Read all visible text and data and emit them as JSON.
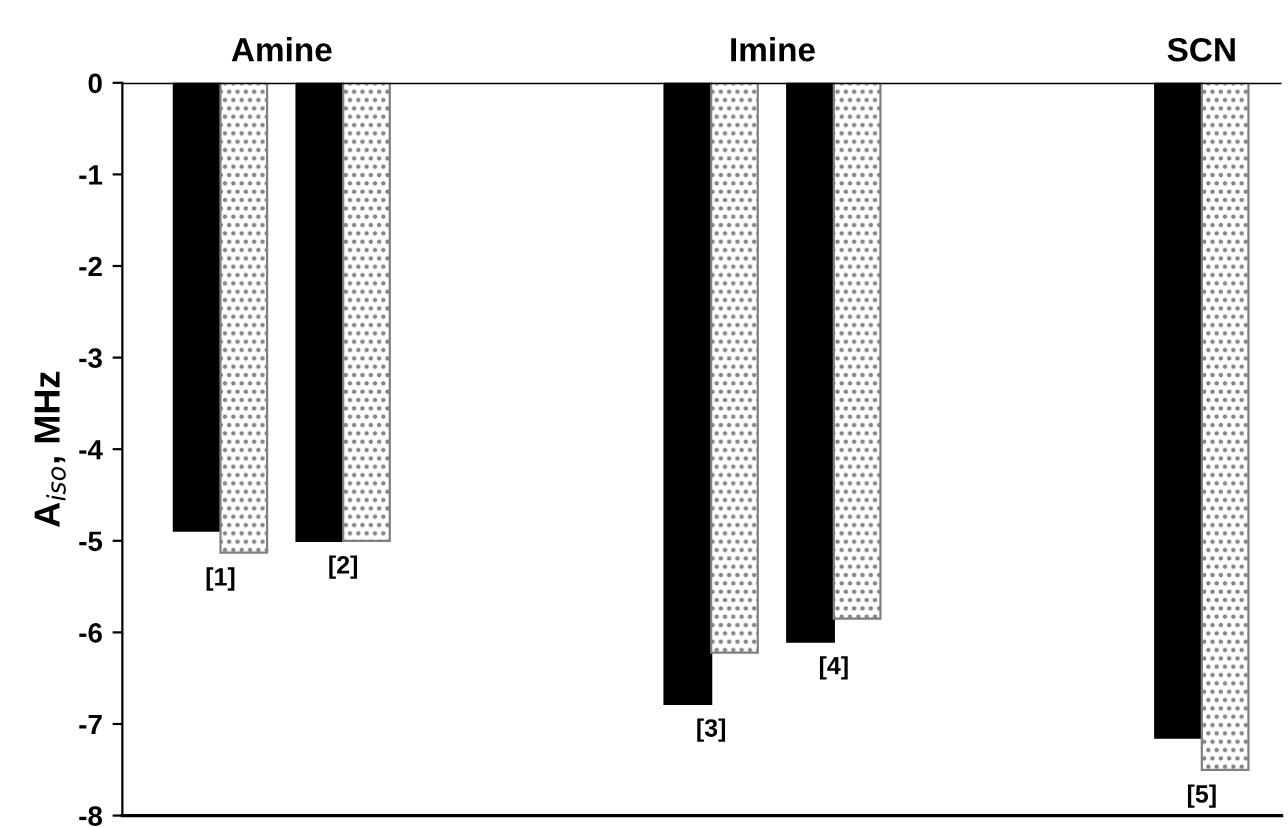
{
  "chart_data": {
    "type": "bar",
    "ylabel": "A$_{iso}$, MHz",
    "categories": [
      "[1]",
      "[2]",
      null,
      null,
      "[3]",
      "[4]",
      null,
      null,
      "[5]"
    ],
    "series": [
      {
        "color": "#000000",
        "values": [
          -4.89,
          -5.0,
          null,
          null,
          -6.78,
          -6.1,
          null,
          null,
          -7.15
        ]
      },
      {
        "color": "#808080",
        "values": [
          -5.13,
          -5.0,
          null,
          null,
          -6.22,
          -5.85,
          null,
          null,
          -7.5
        ]
      }
    ],
    "ylim": [
      -8,
      0
    ],
    "yticks": [
      -8,
      -7,
      -6,
      -5,
      -4,
      -3,
      -2,
      -1,
      0
    ],
    "annotations": [
      "Amine",
      "Imine",
      "SCN"
    ],
    "grid": false,
    "legend": false
  }
}
